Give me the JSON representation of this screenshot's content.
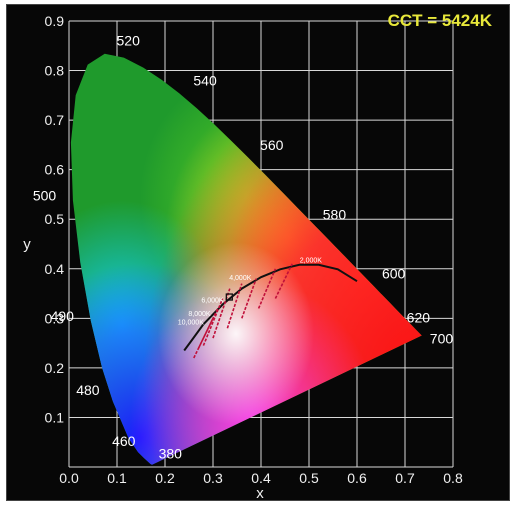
{
  "chart_data": {
    "type": "scatter",
    "title": "CCT = 5424K",
    "xlabel": "x",
    "ylabel": "y",
    "xlim": [
      0.0,
      0.8
    ],
    "ylim": [
      0.0,
      0.9
    ],
    "x_ticks": [
      "0.0",
      "0.1",
      "0.2",
      "0.3",
      "0.4",
      "0.5",
      "0.6",
      "0.7",
      "0.8"
    ],
    "y_ticks": [
      "0.1",
      "0.2",
      "0.3",
      "0.4",
      "0.5",
      "0.6",
      "0.7",
      "0.8",
      "0.9"
    ],
    "grid": true,
    "spectral_locus_labels": [
      {
        "label": "380",
        "x": 0.17,
        "y": 0.005
      },
      {
        "label": "460",
        "x": 0.144,
        "y": 0.03
      },
      {
        "label": "480",
        "x": 0.09,
        "y": 0.133
      },
      {
        "label": "490",
        "x": 0.045,
        "y": 0.295
      },
      {
        "label": "500",
        "x": 0.008,
        "y": 0.538
      },
      {
        "label": "520",
        "x": 0.074,
        "y": 0.834
      },
      {
        "label": "540",
        "x": 0.23,
        "y": 0.754
      },
      {
        "label": "560",
        "x": 0.373,
        "y": 0.624
      },
      {
        "label": "580",
        "x": 0.512,
        "y": 0.487
      },
      {
        "label": "600",
        "x": 0.627,
        "y": 0.372
      },
      {
        "label": "620",
        "x": 0.691,
        "y": 0.308
      },
      {
        "label": "700",
        "x": 0.735,
        "y": 0.265
      }
    ],
    "cct_labels": [
      {
        "label": "10,000K",
        "x": 0.281,
        "y": 0.288
      },
      {
        "label": "8,000K",
        "x": 0.295,
        "y": 0.305
      },
      {
        "label": "6,000K",
        "x": 0.322,
        "y": 0.332
      },
      {
        "label": "4,000K",
        "x": 0.38,
        "y": 0.377
      },
      {
        "label": "2,000K",
        "x": 0.527,
        "y": 0.413
      }
    ],
    "measured_point": {
      "x": 0.334,
      "y": 0.343,
      "cct": "5424K"
    }
  }
}
